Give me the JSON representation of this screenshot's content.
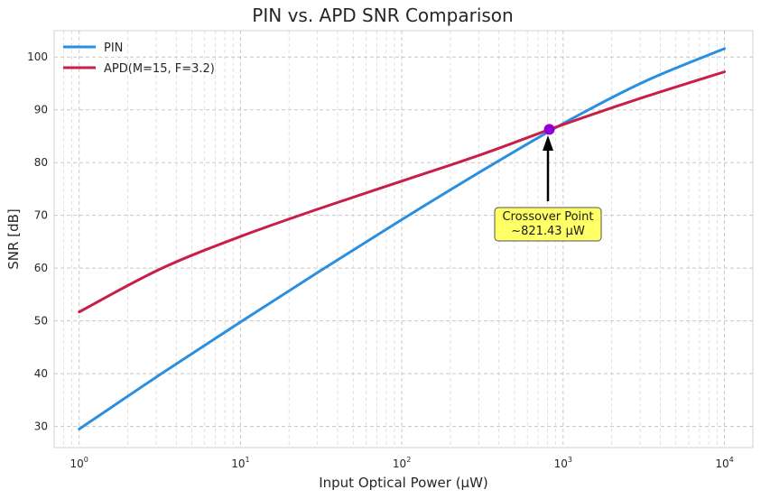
{
  "chart_data": {
    "type": "line",
    "title": "PIN vs. APD SNR Comparison",
    "xlabel": "Input Optical Power (μW)",
    "ylabel": "SNR [dB]",
    "xscale": "log",
    "xlim": [
      0.7,
      15000
    ],
    "ylim": [
      26,
      105
    ],
    "x_ticks": [
      {
        "base": "10",
        "exp": "0",
        "value": 1
      },
      {
        "base": "10",
        "exp": "1",
        "value": 10
      },
      {
        "base": "10",
        "exp": "2",
        "value": 100
      },
      {
        "base": "10",
        "exp": "3",
        "value": 1000
      },
      {
        "base": "10",
        "exp": "4",
        "value": 10000
      }
    ],
    "y_ticks": [
      30,
      40,
      50,
      60,
      70,
      80,
      90,
      100
    ],
    "grid": true,
    "legend_position": "top-left",
    "series": [
      {
        "name": "PIN",
        "color": "#2b8fe0",
        "x": [
          1,
          3.162,
          10,
          31.62,
          100,
          316.2,
          1000,
          3162,
          10000
        ],
        "y": [
          29.5,
          39.8,
          49.8,
          59.6,
          69.2,
          78.5,
          87.4,
          95.3,
          101.6
        ]
      },
      {
        "name": "APD(M=15, F=3.2)",
        "color": "#c81e48",
        "x": [
          1,
          3.162,
          10,
          31.62,
          100,
          316.2,
          1000,
          3162,
          10000
        ],
        "y": [
          51.7,
          59.8,
          66.0,
          71.4,
          76.5,
          81.6,
          87.2,
          92.4,
          97.2
        ]
      }
    ],
    "crossover": {
      "x": 821.43,
      "y": 86.3,
      "label_line1": "Crossover Point",
      "label_line2": "~821.43 μW",
      "marker_color": "#9400d3",
      "box_color": "#ffff66"
    }
  }
}
